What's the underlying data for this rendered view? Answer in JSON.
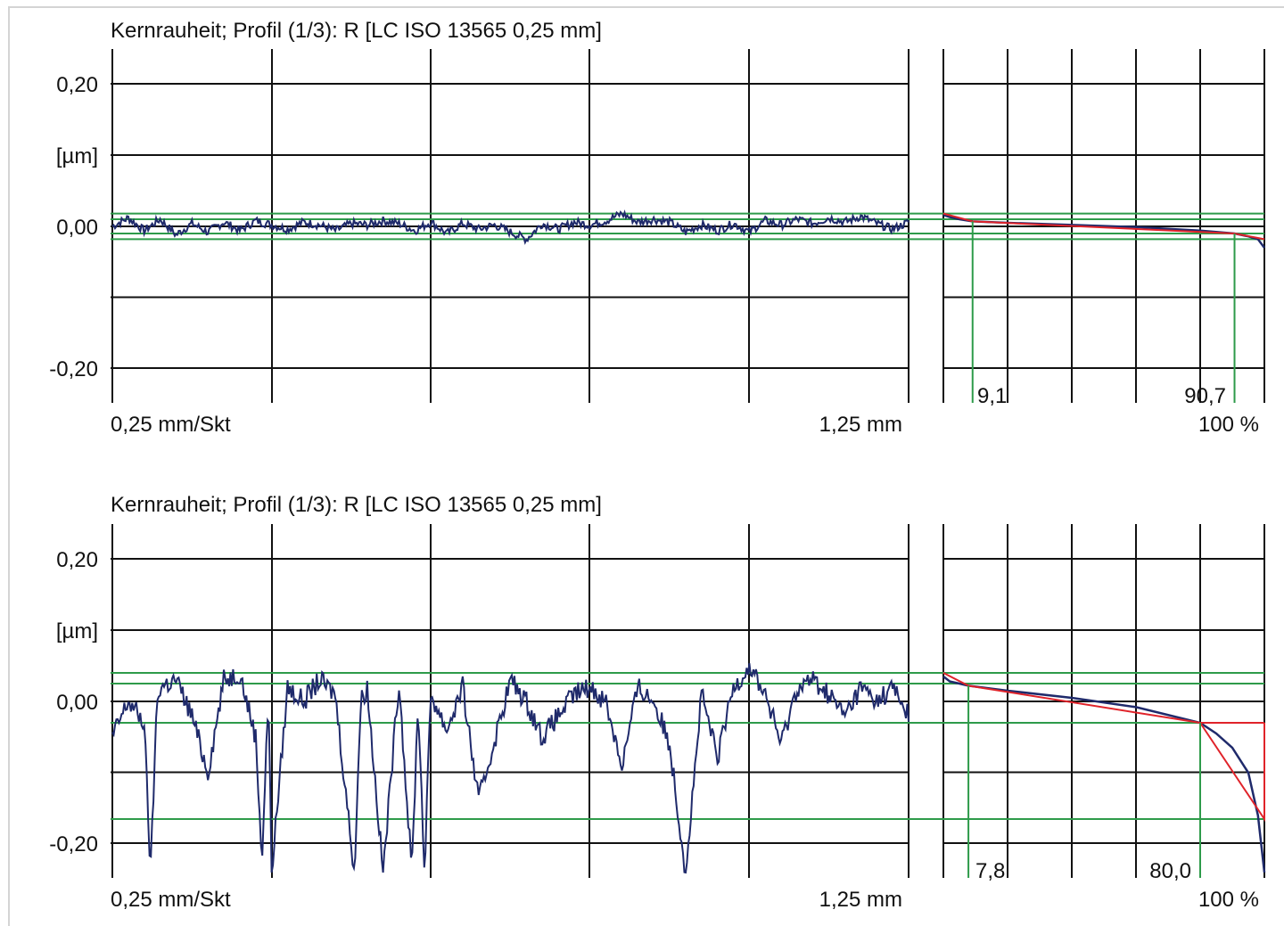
{
  "chart_data": [
    {
      "type": "line",
      "title": "Kernrauheit; Profil (1/3): R [LC ISO 13565 0,25 mm]",
      "y_unit_label": "[µm]",
      "y_ticks": [
        "0,20",
        "0,00",
        "-0,20"
      ],
      "ylim": [
        -0.24,
        0.24
      ],
      "x_left_label": "0,25 mm/Skt",
      "x_right_label": "1,25 mm",
      "xlim_mm": [
        0,
        1.25
      ],
      "grid": true,
      "profile": {
        "x_mm": [
          0,
          0.025,
          0.05,
          0.075,
          0.1,
          0.125,
          0.15,
          0.175,
          0.2,
          0.225,
          0.25,
          0.275,
          0.3,
          0.325,
          0.35,
          0.375,
          0.4,
          0.425,
          0.45,
          0.475,
          0.5,
          0.525,
          0.55,
          0.575,
          0.6,
          0.625,
          0.65,
          0.675,
          0.7,
          0.725,
          0.75,
          0.775,
          0.8,
          0.825,
          0.85,
          0.875,
          0.9,
          0.925,
          0.95,
          0.975,
          1.0,
          1.025,
          1.05,
          1.075,
          1.1,
          1.125,
          1.15,
          1.175,
          1.2,
          1.225,
          1.25
        ],
        "y_um": [
          0.0,
          0.012,
          -0.006,
          0.01,
          -0.012,
          0.004,
          -0.008,
          0.006,
          -0.006,
          0.008,
          0.002,
          -0.004,
          0.006,
          0.002,
          -0.006,
          0.004,
          0.002,
          0.008,
          0.004,
          -0.006,
          0.006,
          -0.01,
          0.004,
          -0.004,
          0.002,
          -0.008,
          -0.018,
          0.004,
          -0.004,
          0.006,
          0.002,
          0.008,
          0.018,
          0.006,
          0.01,
          0.006,
          -0.008,
          0.002,
          -0.006,
          0.004,
          -0.008,
          0.008,
          0.002,
          0.01,
          0.004,
          0.012,
          0.006,
          0.014,
          0.004,
          -0.004,
          0.006
        ]
      },
      "reference_lines_um": [
        0.018,
        0.01,
        -0.01,
        -0.018
      ],
      "bearing_curve": {
        "x_label_left": "9,1",
        "x_label_right": "90,7",
        "x_axis_end_label": "100 %",
        "mr1_pct": 9.1,
        "mr2_pct": 90.7,
        "curve_pct": [
          0,
          2,
          5,
          9.1,
          20,
          40,
          60,
          80,
          90.7,
          95,
          98,
          100
        ],
        "curve_um": [
          0.016,
          0.013,
          0.01,
          0.007,
          0.005,
          0.002,
          -0.001,
          -0.006,
          -0.01,
          -0.014,
          -0.018,
          -0.03
        ],
        "fit_line_um": [
          0.018,
          -0.018
        ]
      }
    },
    {
      "type": "line",
      "title": "Kernrauheit; Profil (1/3): R [LC ISO 13565 0,25 mm]",
      "y_unit_label": "[µm]",
      "y_ticks": [
        "0,20",
        "0,00",
        "-0,20"
      ],
      "ylim": [
        -0.24,
        0.24
      ],
      "x_left_label": "0,25 mm/Skt",
      "x_right_label": "1,25 mm",
      "xlim_mm": [
        0,
        1.25
      ],
      "grid": true,
      "profile": {
        "x_mm": [
          0,
          0.025,
          0.05,
          0.06,
          0.07,
          0.075,
          0.1,
          0.125,
          0.15,
          0.175,
          0.2,
          0.225,
          0.235,
          0.245,
          0.25,
          0.275,
          0.3,
          0.325,
          0.35,
          0.38,
          0.39,
          0.4,
          0.425,
          0.45,
          0.47,
          0.48,
          0.49,
          0.5,
          0.525,
          0.55,
          0.575,
          0.625,
          0.65,
          0.675,
          0.7,
          0.725,
          0.75,
          0.775,
          0.8,
          0.825,
          0.85,
          0.875,
          0.9,
          0.925,
          0.95,
          0.975,
          1.0,
          1.025,
          1.05,
          1.075,
          1.1,
          1.125,
          1.15,
          1.175,
          1.2,
          1.225,
          1.25
        ],
        "y_um": [
          -0.05,
          0.0,
          -0.03,
          -0.24,
          0.0,
          0.02,
          0.03,
          -0.02,
          -0.1,
          0.03,
          0.04,
          -0.05,
          -0.22,
          0.01,
          -0.24,
          0.02,
          0.0,
          0.03,
          0.01,
          -0.24,
          0.0,
          0.02,
          -0.24,
          0.03,
          -0.24,
          0.0,
          -0.24,
          0.01,
          -0.04,
          0.02,
          -0.14,
          0.03,
          0.0,
          -0.05,
          -0.02,
          0.01,
          0.02,
          0.0,
          -0.09,
          0.02,
          0.0,
          -0.06,
          -0.24,
          0.01,
          -0.08,
          0.02,
          0.05,
          0.01,
          -0.06,
          0.02,
          0.03,
          0.01,
          -0.02,
          0.02,
          0.0,
          0.02,
          -0.02
        ]
      },
      "reference_lines_um": [
        0.04,
        0.025,
        -0.03,
        -0.165
      ],
      "bearing_curve": {
        "x_label_left": "7,8",
        "x_label_right": "80,0",
        "x_axis_end_label": "100 %",
        "mr1_pct": 7.8,
        "mr2_pct": 80.0,
        "curve_pct": [
          0,
          2,
          5,
          7.8,
          20,
          40,
          60,
          80,
          85,
          90,
          95,
          98,
          99,
          100
        ],
        "curve_um": [
          0.035,
          0.028,
          0.025,
          0.022,
          0.015,
          0.005,
          -0.008,
          -0.03,
          -0.045,
          -0.065,
          -0.1,
          -0.16,
          -0.2,
          -0.24
        ],
        "fit_line_um": [
          0.04,
          -0.03
        ]
      }
    }
  ]
}
